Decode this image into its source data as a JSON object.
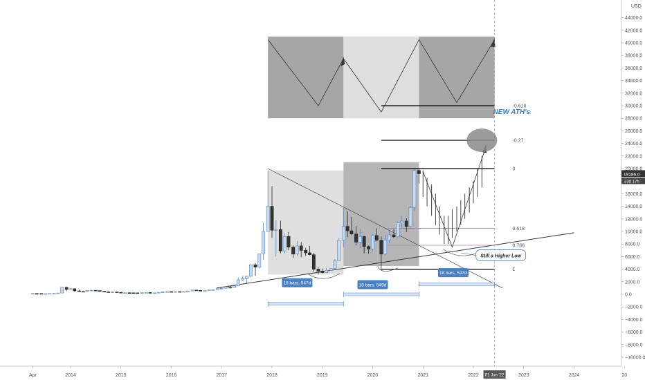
{
  "chart_data": {
    "type": "candlestick",
    "currency": "USD",
    "y_ticks": [
      -10000,
      -8000,
      -6000,
      -4000,
      -2000,
      0,
      2000,
      4000,
      6000,
      8000,
      10000,
      12000,
      14000,
      16000,
      18000,
      20000,
      22000,
      24000,
      26000,
      28000,
      30000,
      32000,
      34000,
      36000,
      38000,
      40000,
      42000,
      44000
    ],
    "y_tick_labels": [
      "−10000.0",
      "−8000.0",
      "−6000.0",
      "−4000.0",
      "−2000.0",
      "0.0",
      "2000.0",
      "4000.0",
      "6000.0",
      "8000.0",
      "10000.0",
      "12000.0",
      "14000.0",
      "16000.0",
      "18000.0",
      "20000.0",
      "22000.0",
      "24000.0",
      "26000.0",
      "28000.0",
      "30000.0",
      "32000.0",
      "34000.0",
      "36000.0",
      "38000.0",
      "40000.0",
      "42000.0",
      "44000.0"
    ],
    "ylim": [
      -12000,
      46000
    ],
    "x_ticks": [
      {
        "t": 2013.25,
        "label": "Apr"
      },
      {
        "t": 2014,
        "label": "2014"
      },
      {
        "t": 2015,
        "label": "2015"
      },
      {
        "t": 2016,
        "label": "2016"
      },
      {
        "t": 2017,
        "label": "2017"
      },
      {
        "t": 2018,
        "label": "2018"
      },
      {
        "t": 2019,
        "label": "2019"
      },
      {
        "t": 2020,
        "label": "2020"
      },
      {
        "t": 2021,
        "label": "2021"
      },
      {
        "t": 2022,
        "label": "2022"
      },
      {
        "t": 2023,
        "label": "2023"
      },
      {
        "t": 2024,
        "label": "2024"
      },
      {
        "t": 2025,
        "label": "20"
      }
    ],
    "cursor_date_label": "01 Jun '22",
    "last_price": "19186.0",
    "countdown": "23d 17h",
    "candles": [
      {
        "t": 2013.25,
        "o": 120,
        "h": 145,
        "l": 80,
        "c": 130
      },
      {
        "t": 2013.33,
        "o": 130,
        "h": 140,
        "l": 110,
        "c": 128
      },
      {
        "t": 2013.42,
        "o": 128,
        "h": 130,
        "l": 95,
        "c": 100
      },
      {
        "t": 2013.5,
        "o": 100,
        "h": 110,
        "l": 65,
        "c": 105
      },
      {
        "t": 2013.58,
        "o": 105,
        "h": 135,
        "l": 100,
        "c": 130
      },
      {
        "t": 2013.67,
        "o": 130,
        "h": 145,
        "l": 120,
        "c": 140
      },
      {
        "t": 2013.75,
        "o": 140,
        "h": 220,
        "l": 130,
        "c": 210
      },
      {
        "t": 2013.83,
        "o": 210,
        "h": 1150,
        "l": 200,
        "c": 1100
      },
      {
        "t": 2013.92,
        "o": 1100,
        "h": 1160,
        "l": 500,
        "c": 780
      },
      {
        "t": 2014.0,
        "o": 780,
        "h": 1000,
        "l": 750,
        "c": 900
      },
      {
        "t": 2014.08,
        "o": 900,
        "h": 950,
        "l": 420,
        "c": 550
      },
      {
        "t": 2014.17,
        "o": 550,
        "h": 700,
        "l": 450,
        "c": 460
      },
      {
        "t": 2014.25,
        "o": 460,
        "h": 500,
        "l": 340,
        "c": 450
      },
      {
        "t": 2014.33,
        "o": 450,
        "h": 640,
        "l": 430,
        "c": 630
      },
      {
        "t": 2014.42,
        "o": 630,
        "h": 680,
        "l": 550,
        "c": 640
      },
      {
        "t": 2014.5,
        "o": 640,
        "h": 650,
        "l": 560,
        "c": 590
      },
      {
        "t": 2014.58,
        "o": 590,
        "h": 600,
        "l": 450,
        "c": 480
      },
      {
        "t": 2014.67,
        "o": 480,
        "h": 490,
        "l": 380,
        "c": 390
      },
      {
        "t": 2014.75,
        "o": 390,
        "h": 420,
        "l": 280,
        "c": 340
      },
      {
        "t": 2014.83,
        "o": 340,
        "h": 440,
        "l": 330,
        "c": 380
      },
      {
        "t": 2014.92,
        "o": 380,
        "h": 400,
        "l": 300,
        "c": 320
      },
      {
        "t": 2015.0,
        "o": 320,
        "h": 330,
        "l": 170,
        "c": 220
      },
      {
        "t": 2015.08,
        "o": 220,
        "h": 260,
        "l": 210,
        "c": 255
      },
      {
        "t": 2015.17,
        "o": 255,
        "h": 300,
        "l": 240,
        "c": 245
      },
      {
        "t": 2015.25,
        "o": 245,
        "h": 250,
        "l": 210,
        "c": 235
      },
      {
        "t": 2015.33,
        "o": 235,
        "h": 245,
        "l": 225,
        "c": 230
      },
      {
        "t": 2015.42,
        "o": 230,
        "h": 265,
        "l": 220,
        "c": 262
      },
      {
        "t": 2015.5,
        "o": 262,
        "h": 320,
        "l": 255,
        "c": 285
      },
      {
        "t": 2015.58,
        "o": 285,
        "h": 290,
        "l": 200,
        "c": 230
      },
      {
        "t": 2015.67,
        "o": 230,
        "h": 245,
        "l": 220,
        "c": 236
      },
      {
        "t": 2015.75,
        "o": 236,
        "h": 330,
        "l": 235,
        "c": 314
      },
      {
        "t": 2015.83,
        "o": 314,
        "h": 500,
        "l": 310,
        "c": 378
      },
      {
        "t": 2015.92,
        "o": 378,
        "h": 470,
        "l": 350,
        "c": 430
      },
      {
        "t": 2016.0,
        "o": 430,
        "h": 460,
        "l": 350,
        "c": 370
      },
      {
        "t": 2016.08,
        "o": 370,
        "h": 440,
        "l": 365,
        "c": 436
      },
      {
        "t": 2016.17,
        "o": 436,
        "h": 440,
        "l": 400,
        "c": 416
      },
      {
        "t": 2016.25,
        "o": 416,
        "h": 470,
        "l": 410,
        "c": 448
      },
      {
        "t": 2016.33,
        "o": 448,
        "h": 550,
        "l": 440,
        "c": 530
      },
      {
        "t": 2016.42,
        "o": 530,
        "h": 780,
        "l": 525,
        "c": 673
      },
      {
        "t": 2016.5,
        "o": 673,
        "h": 700,
        "l": 580,
        "c": 624
      },
      {
        "t": 2016.58,
        "o": 624,
        "h": 630,
        "l": 530,
        "c": 575
      },
      {
        "t": 2016.67,
        "o": 575,
        "h": 620,
        "l": 570,
        "c": 609
      },
      {
        "t": 2016.75,
        "o": 609,
        "h": 720,
        "l": 605,
        "c": 700
      },
      {
        "t": 2016.83,
        "o": 700,
        "h": 750,
        "l": 680,
        "c": 745
      },
      {
        "t": 2016.92,
        "o": 745,
        "h": 975,
        "l": 740,
        "c": 963
      },
      {
        "t": 2017.0,
        "o": 963,
        "h": 1150,
        "l": 750,
        "c": 970
      },
      {
        "t": 2017.08,
        "o": 970,
        "h": 1200,
        "l": 940,
        "c": 1190
      },
      {
        "t": 2017.17,
        "o": 1190,
        "h": 1300,
        "l": 900,
        "c": 1080
      },
      {
        "t": 2017.25,
        "o": 1080,
        "h": 1350,
        "l": 1070,
        "c": 1350
      },
      {
        "t": 2017.33,
        "o": 1350,
        "h": 2700,
        "l": 1340,
        "c": 2300
      },
      {
        "t": 2017.42,
        "o": 2300,
        "h": 3000,
        "l": 2100,
        "c": 2480
      },
      {
        "t": 2017.5,
        "o": 2480,
        "h": 2900,
        "l": 1800,
        "c": 2870
      },
      {
        "t": 2017.58,
        "o": 2870,
        "h": 4800,
        "l": 2700,
        "c": 4700
      },
      {
        "t": 2017.67,
        "o": 4700,
        "h": 5000,
        "l": 2950,
        "c": 4340
      },
      {
        "t": 2017.75,
        "o": 4340,
        "h": 6450,
        "l": 4100,
        "c": 6450
      },
      {
        "t": 2017.83,
        "o": 6450,
        "h": 11400,
        "l": 5500,
        "c": 10000
      },
      {
        "t": 2017.92,
        "o": 10000,
        "h": 19700,
        "l": 10000,
        "c": 14000
      },
      {
        "t": 2018.0,
        "o": 14000,
        "h": 17200,
        "l": 9000,
        "c": 10200
      },
      {
        "t": 2018.08,
        "o": 10200,
        "h": 11800,
        "l": 6000,
        "c": 10300
      },
      {
        "t": 2018.17,
        "o": 10300,
        "h": 11700,
        "l": 6500,
        "c": 6900
      },
      {
        "t": 2018.25,
        "o": 6900,
        "h": 9700,
        "l": 6500,
        "c": 9200
      },
      {
        "t": 2018.33,
        "o": 9200,
        "h": 9900,
        "l": 7000,
        "c": 7500
      },
      {
        "t": 2018.42,
        "o": 7500,
        "h": 7800,
        "l": 5800,
        "c": 6400
      },
      {
        "t": 2018.5,
        "o": 6400,
        "h": 8500,
        "l": 6100,
        "c": 7700
      },
      {
        "t": 2018.58,
        "o": 7700,
        "h": 8300,
        "l": 5900,
        "c": 7000
      },
      {
        "t": 2018.67,
        "o": 7000,
        "h": 7400,
        "l": 6100,
        "c": 6600
      },
      {
        "t": 2018.75,
        "o": 6600,
        "h": 7700,
        "l": 6200,
        "c": 6300
      },
      {
        "t": 2018.83,
        "o": 6300,
        "h": 6600,
        "l": 3600,
        "c": 4000
      },
      {
        "t": 2018.92,
        "o": 4000,
        "h": 4300,
        "l": 3150,
        "c": 3700
      },
      {
        "t": 2019.0,
        "o": 3700,
        "h": 4100,
        "l": 3350,
        "c": 3450
      },
      {
        "t": 2019.08,
        "o": 3450,
        "h": 4200,
        "l": 3400,
        "c": 3800
      },
      {
        "t": 2019.17,
        "o": 3800,
        "h": 4100,
        "l": 3700,
        "c": 4100
      },
      {
        "t": 2019.25,
        "o": 4100,
        "h": 5600,
        "l": 4000,
        "c": 5300
      },
      {
        "t": 2019.33,
        "o": 5300,
        "h": 9000,
        "l": 5300,
        "c": 8600
      },
      {
        "t": 2019.42,
        "o": 8600,
        "h": 13800,
        "l": 7500,
        "c": 10800
      },
      {
        "t": 2019.5,
        "o": 10800,
        "h": 13200,
        "l": 9100,
        "c": 10100
      },
      {
        "t": 2019.58,
        "o": 10100,
        "h": 12300,
        "l": 9400,
        "c": 9600
      },
      {
        "t": 2019.67,
        "o": 9600,
        "h": 10900,
        "l": 7800,
        "c": 8300
      },
      {
        "t": 2019.75,
        "o": 8300,
        "h": 10400,
        "l": 7300,
        "c": 9200
      },
      {
        "t": 2019.83,
        "o": 9200,
        "h": 9300,
        "l": 6500,
        "c": 7600
      },
      {
        "t": 2019.92,
        "o": 7600,
        "h": 7750,
        "l": 6450,
        "c": 7200
      },
      {
        "t": 2020.0,
        "o": 7200,
        "h": 9600,
        "l": 6900,
        "c": 9350
      },
      {
        "t": 2020.08,
        "o": 9350,
        "h": 10500,
        "l": 8500,
        "c": 8600
      },
      {
        "t": 2020.17,
        "o": 8600,
        "h": 9200,
        "l": 3800,
        "c": 6400
      },
      {
        "t": 2020.25,
        "o": 6400,
        "h": 9500,
        "l": 6150,
        "c": 8600
      },
      {
        "t": 2020.33,
        "o": 8600,
        "h": 10100,
        "l": 8100,
        "c": 9450
      },
      {
        "t": 2020.42,
        "o": 9450,
        "h": 10400,
        "l": 8900,
        "c": 9150
      },
      {
        "t": 2020.5,
        "o": 9150,
        "h": 11450,
        "l": 8950,
        "c": 11350
      },
      {
        "t": 2020.58,
        "o": 11350,
        "h": 12500,
        "l": 10550,
        "c": 11650
      },
      {
        "t": 2020.67,
        "o": 11650,
        "h": 12100,
        "l": 9900,
        "c": 10800
      },
      {
        "t": 2020.75,
        "o": 10800,
        "h": 14100,
        "l": 10400,
        "c": 13800
      },
      {
        "t": 2020.83,
        "o": 13800,
        "h": 19900,
        "l": 13200,
        "c": 19700
      },
      {
        "t": 2020.92,
        "o": 19700,
        "h": 20000,
        "l": 17600,
        "c": 19186
      }
    ],
    "projected_bars": [
      {
        "t": 2021.0,
        "h": 19700,
        "l": 15500
      },
      {
        "t": 2021.08,
        "h": 18500,
        "l": 14000
      },
      {
        "t": 2021.17,
        "h": 17500,
        "l": 12500
      },
      {
        "t": 2021.25,
        "h": 16000,
        "l": 11000
      },
      {
        "t": 2021.33,
        "h": 14000,
        "l": 9500
      },
      {
        "t": 2021.42,
        "h": 12500,
        "l": 8000
      },
      {
        "t": 2021.5,
        "h": 12500,
        "l": 8000
      },
      {
        "t": 2021.58,
        "h": 13500,
        "l": 9000
      },
      {
        "t": 2021.67,
        "h": 14000,
        "l": 10000
      },
      {
        "t": 2021.75,
        "h": 15000,
        "l": 11000
      },
      {
        "t": 2021.83,
        "h": 16000,
        "l": 12000
      },
      {
        "t": 2021.92,
        "h": 17000,
        "l": 13000
      },
      {
        "t": 2022.0,
        "h": 18000,
        "l": 14500
      },
      {
        "t": 2022.08,
        "h": 20000,
        "l": 15500
      },
      {
        "t": 2022.17,
        "h": 22000,
        "l": 17000
      }
    ],
    "fib_levels": [
      {
        "label": "-0.618",
        "value": 30000
      },
      {
        "label": "-0.27",
        "value": 24500
      },
      {
        "label": "0",
        "value": 20000
      },
      {
        "label": "0.618",
        "value": 10500
      },
      {
        "label": "0.786",
        "value": 7800
      },
      {
        "label": "1",
        "value": 4000
      }
    ],
    "annotations": {
      "new_ath": "NEW ATH's",
      "higher_low": "Still a Higher Low",
      "ranges": [
        "18 bars, 547d",
        "18 bars, 549d",
        "18 bars, 547d"
      ]
    }
  }
}
